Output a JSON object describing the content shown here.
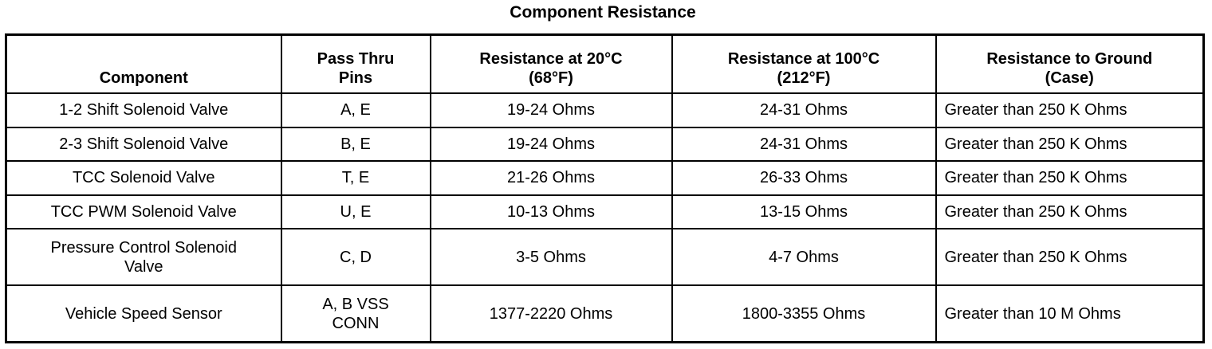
{
  "title": "Component Resistance",
  "columns": [
    "Component",
    "Pass Thru Pins",
    "Resistance at 20°C (68°F)",
    "Resistance at 100°C (212°F)",
    "Resistance to Ground (Case)"
  ],
  "header_lines": [
    [
      "Component"
    ],
    [
      "Pass Thru",
      "Pins"
    ],
    [
      "Resistance at 20°C",
      "(68°F)"
    ],
    [
      "Resistance at 100°C",
      "(212°F)"
    ],
    [
      "Resistance to Ground",
      "(Case)"
    ]
  ],
  "rows": [
    {
      "component": "1-2 Shift Solenoid Valve",
      "pins": "A, E",
      "r20": "19-24 Ohms",
      "r100": "24-31 Ohms",
      "ground": "Greater than 250 K Ohms"
    },
    {
      "component": "2-3 Shift Solenoid Valve",
      "pins": "B, E",
      "r20": "19-24 Ohms",
      "r100": "24-31 Ohms",
      "ground": "Greater than 250 K Ohms"
    },
    {
      "component": "TCC Solenoid Valve",
      "pins": "T, E",
      "r20": "21-26 Ohms",
      "r100": "26-33 Ohms",
      "ground": "Greater than 250 K Ohms"
    },
    {
      "component": "TCC PWM Solenoid Valve",
      "pins": "U, E",
      "r20": "10-13 Ohms",
      "r100": "13-15 Ohms",
      "ground": "Greater than 250 K Ohms"
    },
    {
      "component": "Pressure Control Solenoid Valve",
      "component_lines": [
        "Pressure Control Solenoid",
        "Valve"
      ],
      "pins": "C, D",
      "r20": "3-5 Ohms",
      "r100": "4-7 Ohms",
      "ground": "Greater than 250 K Ohms"
    },
    {
      "component": "Vehicle Speed Sensor",
      "pins": "A, B VSS CONN",
      "pins_lines": [
        "A, B VSS",
        "CONN"
      ],
      "r20": "1377-2220 Ohms",
      "r100": "1800-3355 Ohms",
      "ground": "Greater than 10 M Ohms"
    }
  ]
}
